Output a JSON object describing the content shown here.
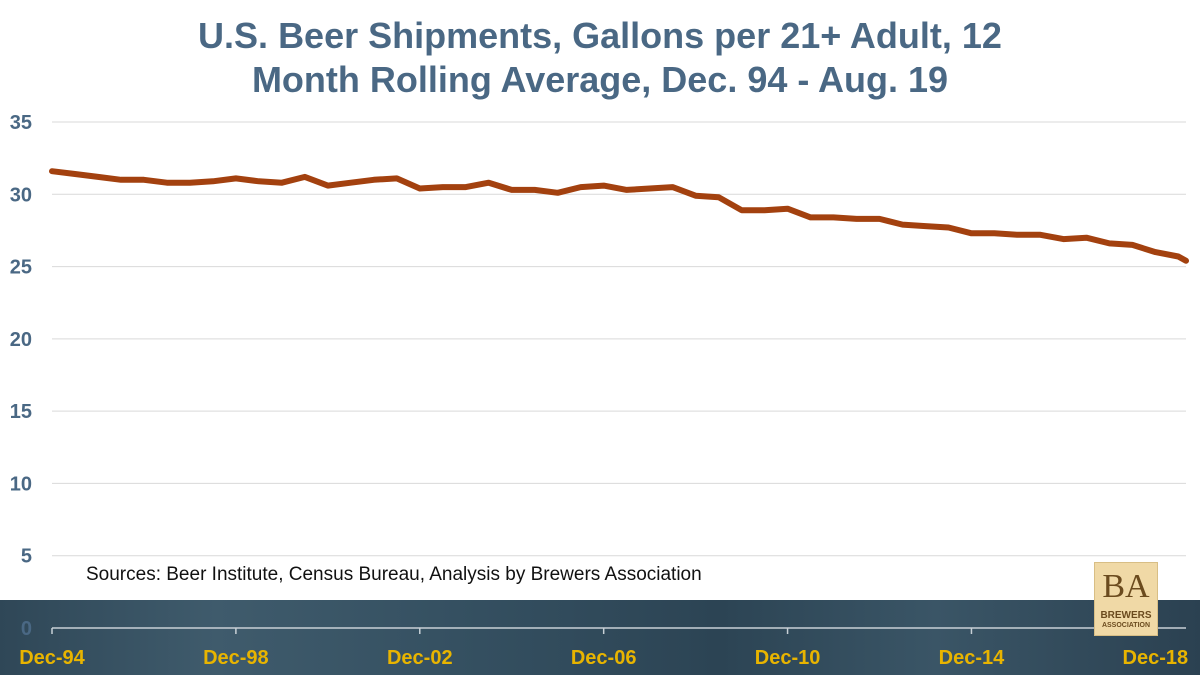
{
  "title_lines": [
    "U.S. Beer Shipments, Gallons per 21+ Adult, 12",
    "Month Rolling Average, Dec. 94 - Aug. 19"
  ],
  "source_note": "Sources: Beer Institute, Census Bureau, Analysis by Brewers Association",
  "logo": {
    "mark": "BA",
    "line1": "BREWERS",
    "line2": "ASSOCIATION"
  },
  "colors": {
    "title": "#4a6884",
    "series": "#a3410f",
    "y_ticks": "#4a6884",
    "x_ticks": "#e8b400",
    "grid": "#d9d9d9"
  },
  "chart_data": {
    "type": "line",
    "title": "U.S. Beer Shipments, Gallons per 21+ Adult, 12 Month Rolling Average, Dec. 94 - Aug. 19",
    "xlabel": "",
    "ylabel": "",
    "ylim": [
      0,
      35
    ],
    "y_ticks": [
      0,
      5,
      10,
      15,
      20,
      25,
      30,
      35
    ],
    "x_ticks": [
      "Dec-94",
      "Dec-98",
      "Dec-02",
      "Dec-06",
      "Dec-10",
      "Dec-14",
      "Dec-18"
    ],
    "x_range": [
      "1994-12",
      "2019-08"
    ],
    "grid": true,
    "legend": "none",
    "series": [
      {
        "x": [
          "1994-12",
          "1995-06",
          "1995-12",
          "1996-06",
          "1996-12",
          "1997-06",
          "1997-12",
          "1998-06",
          "1998-12",
          "1999-06",
          "1999-12",
          "2000-06",
          "2000-12",
          "2001-06",
          "2001-12",
          "2002-06",
          "2002-12",
          "2003-06",
          "2003-12",
          "2004-06",
          "2004-12",
          "2005-06",
          "2005-12",
          "2006-06",
          "2006-12",
          "2007-06",
          "2007-12",
          "2008-06",
          "2008-12",
          "2009-06",
          "2009-12",
          "2010-06",
          "2010-12",
          "2011-06",
          "2011-12",
          "2012-06",
          "2012-12",
          "2013-06",
          "2013-12",
          "2014-06",
          "2014-12",
          "2015-06",
          "2015-12",
          "2016-06",
          "2016-12",
          "2017-06",
          "2017-12",
          "2018-06",
          "2018-12",
          "2019-06",
          "2019-08"
        ],
        "values": [
          31.6,
          31.4,
          31.2,
          31.0,
          31.0,
          30.8,
          30.8,
          30.9,
          31.1,
          30.9,
          30.8,
          31.2,
          30.6,
          30.8,
          31.0,
          31.1,
          30.4,
          30.5,
          30.5,
          30.8,
          30.3,
          30.3,
          30.1,
          30.5,
          30.6,
          30.3,
          30.4,
          30.5,
          29.9,
          29.8,
          28.9,
          28.9,
          29.0,
          28.4,
          28.4,
          28.3,
          28.3,
          27.9,
          27.8,
          27.7,
          27.3,
          27.3,
          27.2,
          27.2,
          26.9,
          27.0,
          26.6,
          26.5,
          26.0,
          25.7,
          25.4
        ]
      }
    ]
  }
}
